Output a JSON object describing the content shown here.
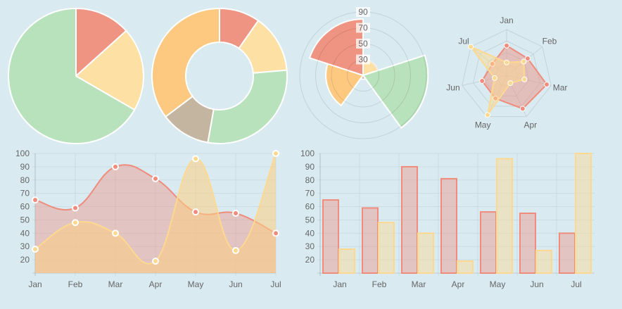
{
  "colors": {
    "background": "#d9eaf1",
    "red": "#ef8c7c",
    "yellow": "#fdd98f",
    "green": "#b5e1b8",
    "gray": "#c4b49d",
    "orange": "#fdc97e",
    "grid": "#c7d3d8"
  },
  "chart_data": [
    {
      "type": "pie",
      "values": [
        40,
        60,
        200
      ],
      "colors": [
        "#ef9383",
        "#fde0a4",
        "#b7e2bb"
      ]
    },
    {
      "type": "doughnut",
      "values": [
        35,
        50,
        105,
        43,
        127
      ],
      "colors": [
        "#ef9383",
        "#fde0a4",
        "#b7e2bb",
        "#c4b5a0",
        "#fdc980"
      ]
    },
    {
      "type": "polarArea",
      "values": [
        30,
        92,
        15,
        57,
        81
      ],
      "colors": [
        "#fde0a4",
        "#b7e2bb",
        "#c4b5a0",
        "#fdc980",
        "#ef9383"
      ],
      "ticks": [
        "30",
        "50",
        "70",
        "90"
      ],
      "rmin": 10,
      "rmax": 90
    },
    {
      "type": "radar",
      "categories": [
        "Jan",
        "Feb",
        "Mar",
        "Apr",
        "May",
        "Jun",
        "Jul"
      ],
      "rmax": 100,
      "series": [
        {
          "values": [
            65,
            59,
            90,
            81,
            56,
            55,
            40
          ],
          "color": "#ef8c7c"
        },
        {
          "values": [
            28,
            48,
            40,
            19,
            96,
            27,
            100
          ],
          "color": "#fdd98f"
        }
      ]
    },
    {
      "type": "line",
      "categories": [
        "Jan",
        "Feb",
        "Mar",
        "Apr",
        "May",
        "Jun",
        "Jul"
      ],
      "yticks": [
        "20",
        "30",
        "40",
        "50",
        "60",
        "70",
        "80",
        "90",
        "100"
      ],
      "ylim": [
        10,
        100
      ],
      "grid": true,
      "series": [
        {
          "values": [
            65,
            59,
            90,
            81,
            56,
            55,
            40
          ],
          "color": "#ef8c7c"
        },
        {
          "values": [
            28,
            48,
            40,
            19,
            96,
            27,
            100
          ],
          "color": "#fdd98f"
        }
      ]
    },
    {
      "type": "bar",
      "categories": [
        "Jan",
        "Feb",
        "Mar",
        "Apr",
        "May",
        "Jun",
        "Jul"
      ],
      "yticks": [
        "20",
        "30",
        "40",
        "50",
        "60",
        "70",
        "80",
        "90",
        "100"
      ],
      "ylim": [
        10,
        100
      ],
      "grid": true,
      "series": [
        {
          "values": [
            65,
            59,
            90,
            81,
            56,
            55,
            40
          ],
          "color": "#ef8c7c"
        },
        {
          "values": [
            28,
            48,
            40,
            19,
            96,
            27,
            100
          ],
          "color": "#fdd98f"
        }
      ]
    }
  ]
}
